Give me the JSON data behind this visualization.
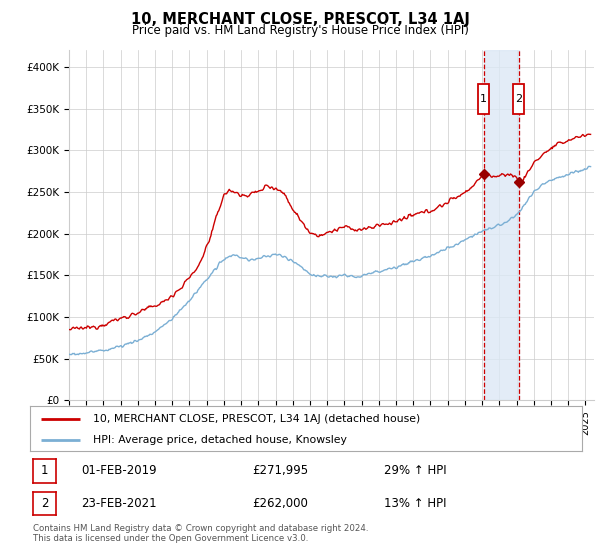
{
  "title": "10, MERCHANT CLOSE, PRESCOT, L34 1AJ",
  "subtitle": "Price paid vs. HM Land Registry's House Price Index (HPI)",
  "ylabel_ticks": [
    "£0",
    "£50K",
    "£100K",
    "£150K",
    "£200K",
    "£250K",
    "£300K",
    "£350K",
    "£400K"
  ],
  "ytick_values": [
    0,
    50000,
    100000,
    150000,
    200000,
    250000,
    300000,
    350000,
    400000
  ],
  "ylim": [
    0,
    420000
  ],
  "xlim_start": 1995.0,
  "xlim_end": 2025.5,
  "sale1_date": 2019.083,
  "sale1_price": 271995,
  "sale1_label": "1",
  "sale2_date": 2021.14,
  "sale2_price": 262000,
  "sale2_label": "2",
  "legend_line1": "10, MERCHANT CLOSE, PRESCOT, L34 1AJ (detached house)",
  "legend_line2": "HPI: Average price, detached house, Knowsley",
  "table_row1_num": "1",
  "table_row1_date": "01-FEB-2019",
  "table_row1_price": "£271,995",
  "table_row1_hpi": "29% ↑ HPI",
  "table_row2_num": "2",
  "table_row2_date": "23-FEB-2021",
  "table_row2_price": "£262,000",
  "table_row2_hpi": "13% ↑ HPI",
  "footer": "Contains HM Land Registry data © Crown copyright and database right 2024.\nThis data is licensed under the Open Government Licence v3.0.",
  "hpi_color": "#7bafd4",
  "price_color": "#cc0000",
  "sale_dot_color": "#990000",
  "vline_color": "#cc0000",
  "shade_color": "#dce8f5",
  "grid_color": "#cccccc",
  "background_color": "#ffffff"
}
